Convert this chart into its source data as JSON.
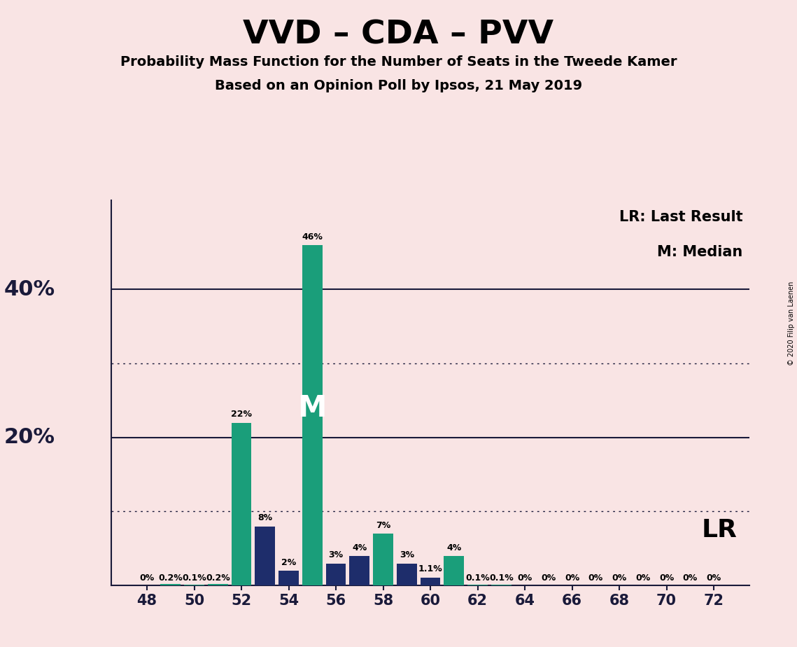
{
  "title": "VVD – CDA – PVV",
  "subtitle1": "Probability Mass Function for the Number of Seats in the Tweede Kamer",
  "subtitle2": "Based on an Opinion Poll by Ipsos, 21 May 2019",
  "background_color": "#f9e4e4",
  "teal_color": "#1a9e7a",
  "navy_color": "#1e2d6b",
  "seats": [
    48,
    49,
    50,
    51,
    52,
    53,
    54,
    55,
    56,
    57,
    58,
    59,
    60,
    61,
    62,
    63,
    64,
    65,
    66,
    67,
    68,
    69,
    70,
    71,
    72
  ],
  "values": [
    0.0,
    0.2,
    0.1,
    0.2,
    22.0,
    8.0,
    2.0,
    46.0,
    3.0,
    4.0,
    7.0,
    3.0,
    1.1,
    4.0,
    0.1,
    0.1,
    0.0,
    0.0,
    0.0,
    0.0,
    0.0,
    0.0,
    0.0,
    0.0,
    0.0
  ],
  "colors": [
    "teal",
    "teal",
    "teal",
    "teal",
    "teal",
    "navy",
    "navy",
    "teal",
    "navy",
    "navy",
    "teal",
    "navy",
    "navy",
    "teal",
    "teal",
    "teal",
    "teal",
    "teal",
    "teal",
    "teal",
    "teal",
    "teal",
    "teal",
    "teal",
    "teal"
  ],
  "labels": [
    "0%",
    "0.2%",
    "0.1%",
    "0.2%",
    "22%",
    "8%",
    "2%",
    "46%",
    "3%",
    "4%",
    "7%",
    "3%",
    "1.1%",
    "4%",
    "0.1%",
    "0.1%",
    "0%",
    "0%",
    "0%",
    "0%",
    "0%",
    "0%",
    "0%",
    "0%",
    "0%"
  ],
  "median_seat": 55,
  "lr_seat": 61,
  "xtick_seats": [
    48,
    50,
    52,
    54,
    56,
    58,
    60,
    62,
    64,
    66,
    68,
    70,
    72
  ],
  "ytick_shown": [
    20,
    40
  ],
  "solid_lines": [
    20,
    40
  ],
  "dotted_lines": [
    10,
    30
  ],
  "ylim": [
    0,
    52
  ],
  "copyright": "© 2020 Filip van Laenen"
}
